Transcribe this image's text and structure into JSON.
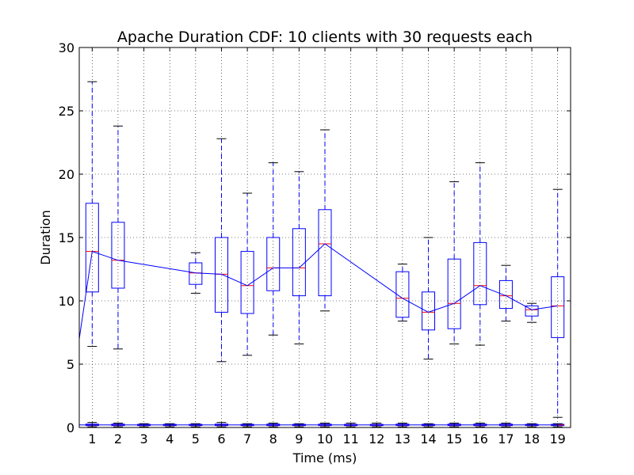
{
  "chart_data": {
    "type": "box",
    "title": "Apache Duration CDF: 10 clients with 30 requests each",
    "xlabel": "Time (ms)",
    "ylabel": "Duration",
    "xlim": [
      0.5,
      19.5
    ],
    "ylim": [
      0,
      30
    ],
    "yticks": [
      0,
      5,
      10,
      15,
      20,
      25,
      30
    ],
    "xticks": [
      1,
      2,
      3,
      4,
      5,
      6,
      7,
      8,
      9,
      10,
      11,
      12,
      13,
      14,
      15,
      16,
      17,
      18,
      19
    ],
    "grid": true,
    "colors": {
      "box": "#0000ff",
      "median": "#ff0000",
      "flier": "#000000",
      "median_line": "#0000ff"
    },
    "series": [
      {
        "boxes": [
          {
            "x": 1,
            "whislo": 6.4,
            "q1": 10.7,
            "med": 13.9,
            "q3": 17.7,
            "whishi": 27.3
          },
          {
            "x": 2,
            "whislo": 6.2,
            "q1": 11.0,
            "med": 13.2,
            "q3": 16.2,
            "whishi": 23.8
          },
          {
            "x": 5,
            "whislo": 10.6,
            "q1": 11.3,
            "med": 12.2,
            "q3": 13.0,
            "whishi": 13.8
          },
          {
            "x": 6,
            "whislo": 5.2,
            "q1": 9.1,
            "med": 12.1,
            "q3": 15.0,
            "whishi": 22.8
          },
          {
            "x": 7,
            "whislo": 5.7,
            "q1": 9.0,
            "med": 11.2,
            "q3": 13.9,
            "whishi": 18.5
          },
          {
            "x": 8,
            "whislo": 7.3,
            "q1": 10.8,
            "med": 12.6,
            "q3": 15.0,
            "whishi": 20.9
          },
          {
            "x": 9,
            "whislo": 6.6,
            "q1": 10.4,
            "med": 12.6,
            "q3": 15.7,
            "whishi": 20.2
          },
          {
            "x": 10,
            "whislo": 9.2,
            "q1": 10.4,
            "med": 14.5,
            "q3": 17.2,
            "whishi": 23.5
          },
          {
            "x": 13,
            "whislo": 8.4,
            "q1": 8.7,
            "med": 10.2,
            "q3": 12.3,
            "whishi": 12.9
          },
          {
            "x": 14,
            "whislo": 5.4,
            "q1": 7.7,
            "med": 9.1,
            "q3": 10.7,
            "whishi": 15.0
          },
          {
            "x": 15,
            "whislo": 6.6,
            "q1": 7.8,
            "med": 9.8,
            "q3": 13.3,
            "whishi": 19.4
          },
          {
            "x": 16,
            "whislo": 6.5,
            "q1": 9.7,
            "med": 11.2,
            "q3": 14.6,
            "whishi": 20.9
          },
          {
            "x": 17,
            "whislo": 8.4,
            "q1": 9.4,
            "med": 10.4,
            "q3": 11.6,
            "whishi": 12.8
          },
          {
            "x": 18,
            "whislo": 8.3,
            "q1": 8.8,
            "med": 9.3,
            "q3": 9.6,
            "whishi": 9.8
          },
          {
            "x": 19,
            "whislo": 0.8,
            "q1": 7.1,
            "med": 9.6,
            "q3": 11.9,
            "whishi": 18.8
          }
        ],
        "median_line": {
          "x": [
            0.5,
            1,
            2,
            5,
            6,
            7,
            8,
            9,
            10,
            13,
            14,
            15,
            16,
            17,
            18,
            19
          ],
          "y": [
            7.0,
            13.9,
            13.2,
            12.2,
            12.1,
            11.2,
            12.6,
            12.6,
            14.5,
            10.2,
            9.1,
            9.8,
            11.2,
            10.4,
            9.3,
            9.6
          ]
        }
      },
      {
        "boxes": [
          {
            "x": 1,
            "whislo": 0.05,
            "q1": 0.15,
            "med": 0.2,
            "q3": 0.27,
            "whishi": 0.4
          },
          {
            "x": 2,
            "whislo": 0.05,
            "q1": 0.15,
            "med": 0.2,
            "q3": 0.27,
            "whishi": 0.35
          },
          {
            "x": 3,
            "whislo": 0.05,
            "q1": 0.15,
            "med": 0.2,
            "q3": 0.25,
            "whishi": 0.3
          },
          {
            "x": 4,
            "whislo": 0.05,
            "q1": 0.15,
            "med": 0.2,
            "q3": 0.25,
            "whishi": 0.3
          },
          {
            "x": 5,
            "whislo": 0.05,
            "q1": 0.15,
            "med": 0.2,
            "q3": 0.25,
            "whishi": 0.3
          },
          {
            "x": 6,
            "whislo": 0.05,
            "q1": 0.15,
            "med": 0.2,
            "q3": 0.27,
            "whishi": 0.4
          },
          {
            "x": 7,
            "whislo": 0.05,
            "q1": 0.15,
            "med": 0.2,
            "q3": 0.25,
            "whishi": 0.3
          },
          {
            "x": 8,
            "whislo": 0.05,
            "q1": 0.15,
            "med": 0.2,
            "q3": 0.27,
            "whishi": 0.35
          },
          {
            "x": 9,
            "whislo": 0.05,
            "q1": 0.15,
            "med": 0.2,
            "q3": 0.25,
            "whishi": 0.3
          },
          {
            "x": 10,
            "whislo": 0.05,
            "q1": 0.15,
            "med": 0.2,
            "q3": 0.27,
            "whishi": 0.35
          },
          {
            "x": 11,
            "whislo": 0.05,
            "q1": 0.15,
            "med": 0.2,
            "q3": 0.25,
            "whishi": 0.35
          },
          {
            "x": 12,
            "whislo": 0.05,
            "q1": 0.15,
            "med": 0.2,
            "q3": 0.25,
            "whishi": 0.35
          },
          {
            "x": 13,
            "whislo": 0.05,
            "q1": 0.15,
            "med": 0.2,
            "q3": 0.27,
            "whishi": 0.35
          },
          {
            "x": 14,
            "whislo": 0.05,
            "q1": 0.15,
            "med": 0.2,
            "q3": 0.25,
            "whishi": 0.3
          },
          {
            "x": 15,
            "whislo": 0.05,
            "q1": 0.15,
            "med": 0.2,
            "q3": 0.27,
            "whishi": 0.35
          },
          {
            "x": 16,
            "whislo": 0.05,
            "q1": 0.15,
            "med": 0.2,
            "q3": 0.27,
            "whishi": 0.35
          },
          {
            "x": 17,
            "whislo": 0.05,
            "q1": 0.15,
            "med": 0.2,
            "q3": 0.27,
            "whishi": 0.35
          },
          {
            "x": 18,
            "whislo": 0.05,
            "q1": 0.15,
            "med": 0.2,
            "q3": 0.25,
            "whishi": 0.3
          },
          {
            "x": 19,
            "whislo": 0.05,
            "q1": 0.15,
            "med": 0.2,
            "q3": 0.25,
            "whishi": 0.3
          }
        ],
        "median_line": {
          "x": [
            0.5,
            1,
            2,
            3,
            4,
            5,
            6,
            7,
            8,
            9,
            10,
            11,
            12,
            13,
            14,
            15,
            16,
            17,
            18,
            19
          ],
          "y": [
            0.2,
            0.2,
            0.2,
            0.2,
            0.2,
            0.2,
            0.2,
            0.2,
            0.2,
            0.2,
            0.2,
            0.2,
            0.2,
            0.2,
            0.2,
            0.2,
            0.2,
            0.2,
            0.2,
            0.2
          ]
        }
      }
    ]
  }
}
